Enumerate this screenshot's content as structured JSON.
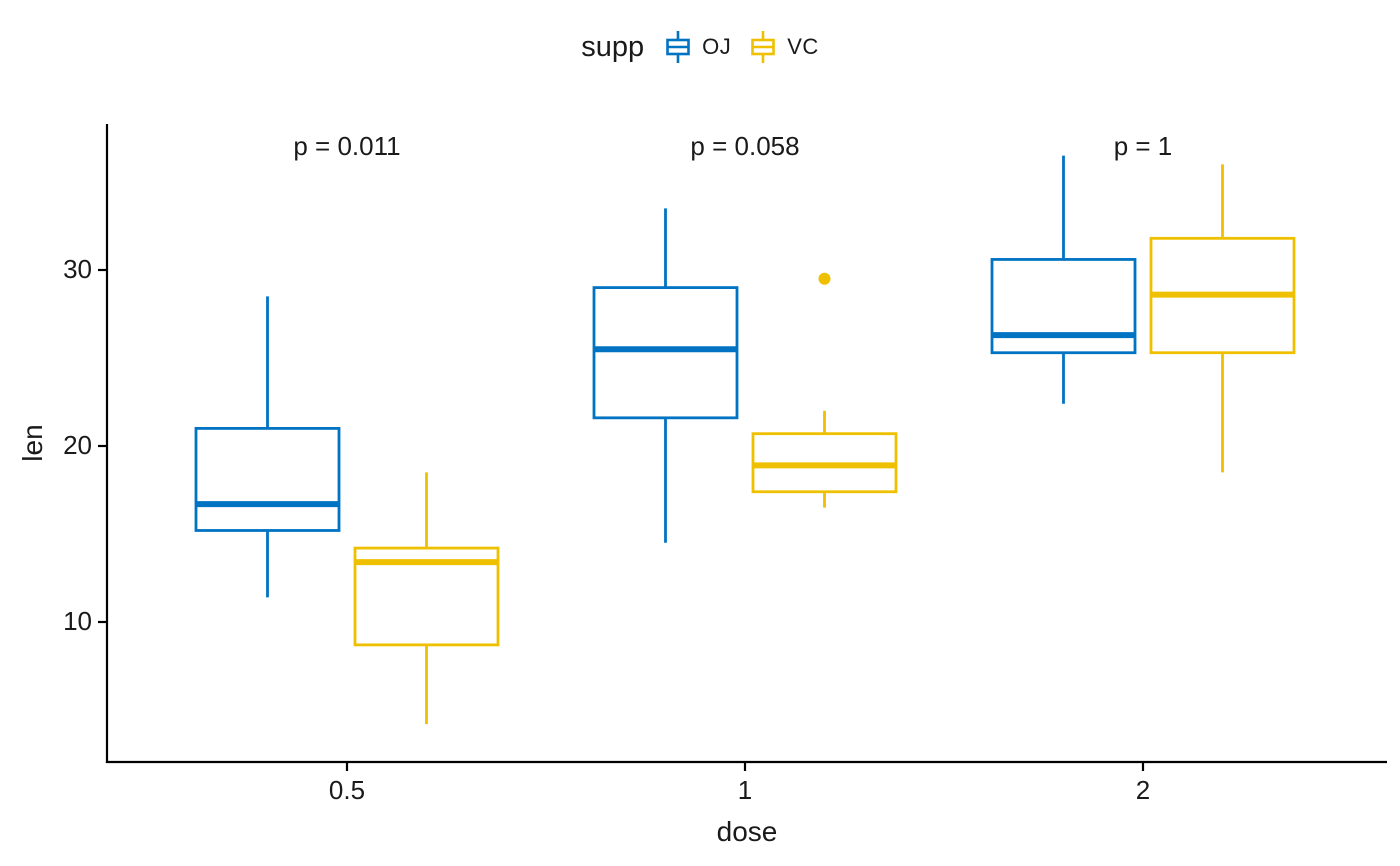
{
  "chart_data": {
    "type": "boxplot",
    "title": "",
    "xlabel": "dose",
    "ylabel": "len",
    "categories": [
      "0.5",
      "1",
      "2"
    ],
    "y_ticks": [
      "10",
      "20",
      "30"
    ],
    "ylim": [
      3,
      38.5
    ],
    "grid": false,
    "legend": {
      "title": "supp",
      "position": "top"
    },
    "series": [
      {
        "name": "OJ",
        "color": "#0073C2",
        "boxes": [
          {
            "dose": "0.5",
            "whisker_min": 11.4,
            "q1": 15.2,
            "median": 16.7,
            "q3": 21.0,
            "whisker_max": 28.5,
            "outliers": []
          },
          {
            "dose": "1",
            "whisker_min": 14.5,
            "q1": 21.6,
            "median": 25.5,
            "q3": 29.0,
            "whisker_max": 33.5,
            "outliers": []
          },
          {
            "dose": "2",
            "whisker_min": 22.4,
            "q1": 25.3,
            "median": 26.3,
            "q3": 30.6,
            "whisker_max": 36.5,
            "outliers": []
          }
        ]
      },
      {
        "name": "VC",
        "color": "#EFC000",
        "boxes": [
          {
            "dose": "0.5",
            "whisker_min": 4.2,
            "q1": 8.7,
            "median": 13.4,
            "q3": 14.2,
            "whisker_max": 18.5,
            "outliers": []
          },
          {
            "dose": "1",
            "whisker_min": 16.5,
            "q1": 17.4,
            "median": 18.9,
            "q3": 20.7,
            "whisker_max": 22.0,
            "outliers": [
              29.5
            ]
          },
          {
            "dose": "2",
            "whisker_min": 18.5,
            "q1": 25.3,
            "median": 28.6,
            "q3": 31.8,
            "whisker_max": 36.0,
            "outliers": []
          }
        ]
      }
    ],
    "annotations": [
      {
        "text": "p = 0.011",
        "dose": "0.5"
      },
      {
        "text": "p = 0.058",
        "dose": "1"
      },
      {
        "text": "p = 1",
        "dose": "2"
      }
    ],
    "axis_color": "#000000",
    "text_color": "#1a1a1a"
  }
}
